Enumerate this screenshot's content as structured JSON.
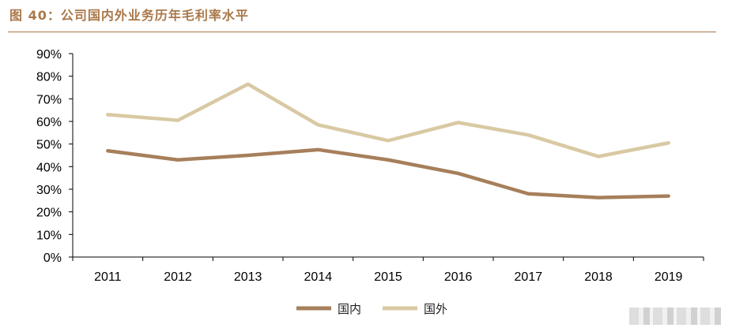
{
  "figure": {
    "title": "图 40：公司国内外业务历年毛利率水平"
  },
  "chart_data": {
    "type": "line",
    "categories": [
      "2011",
      "2012",
      "2013",
      "2014",
      "2015",
      "2016",
      "2017",
      "2018",
      "2019"
    ],
    "series": [
      {
        "name": "国内",
        "color": "#a67f5b",
        "values": [
          47,
          43,
          45,
          47.5,
          43,
          37,
          28,
          26.3,
          27
        ]
      },
      {
        "name": "国外",
        "color": "#d9c9a3",
        "values": [
          63,
          60.5,
          76.5,
          58.5,
          51.5,
          59.5,
          54,
          44.5,
          50.5
        ]
      }
    ],
    "y_ticks": [
      "0%",
      "10%",
      "20%",
      "30%",
      "40%",
      "50%",
      "60%",
      "70%",
      "80%",
      "90%"
    ],
    "ylim": [
      0,
      90
    ],
    "grid": false,
    "legend_position": "bottom-center"
  }
}
